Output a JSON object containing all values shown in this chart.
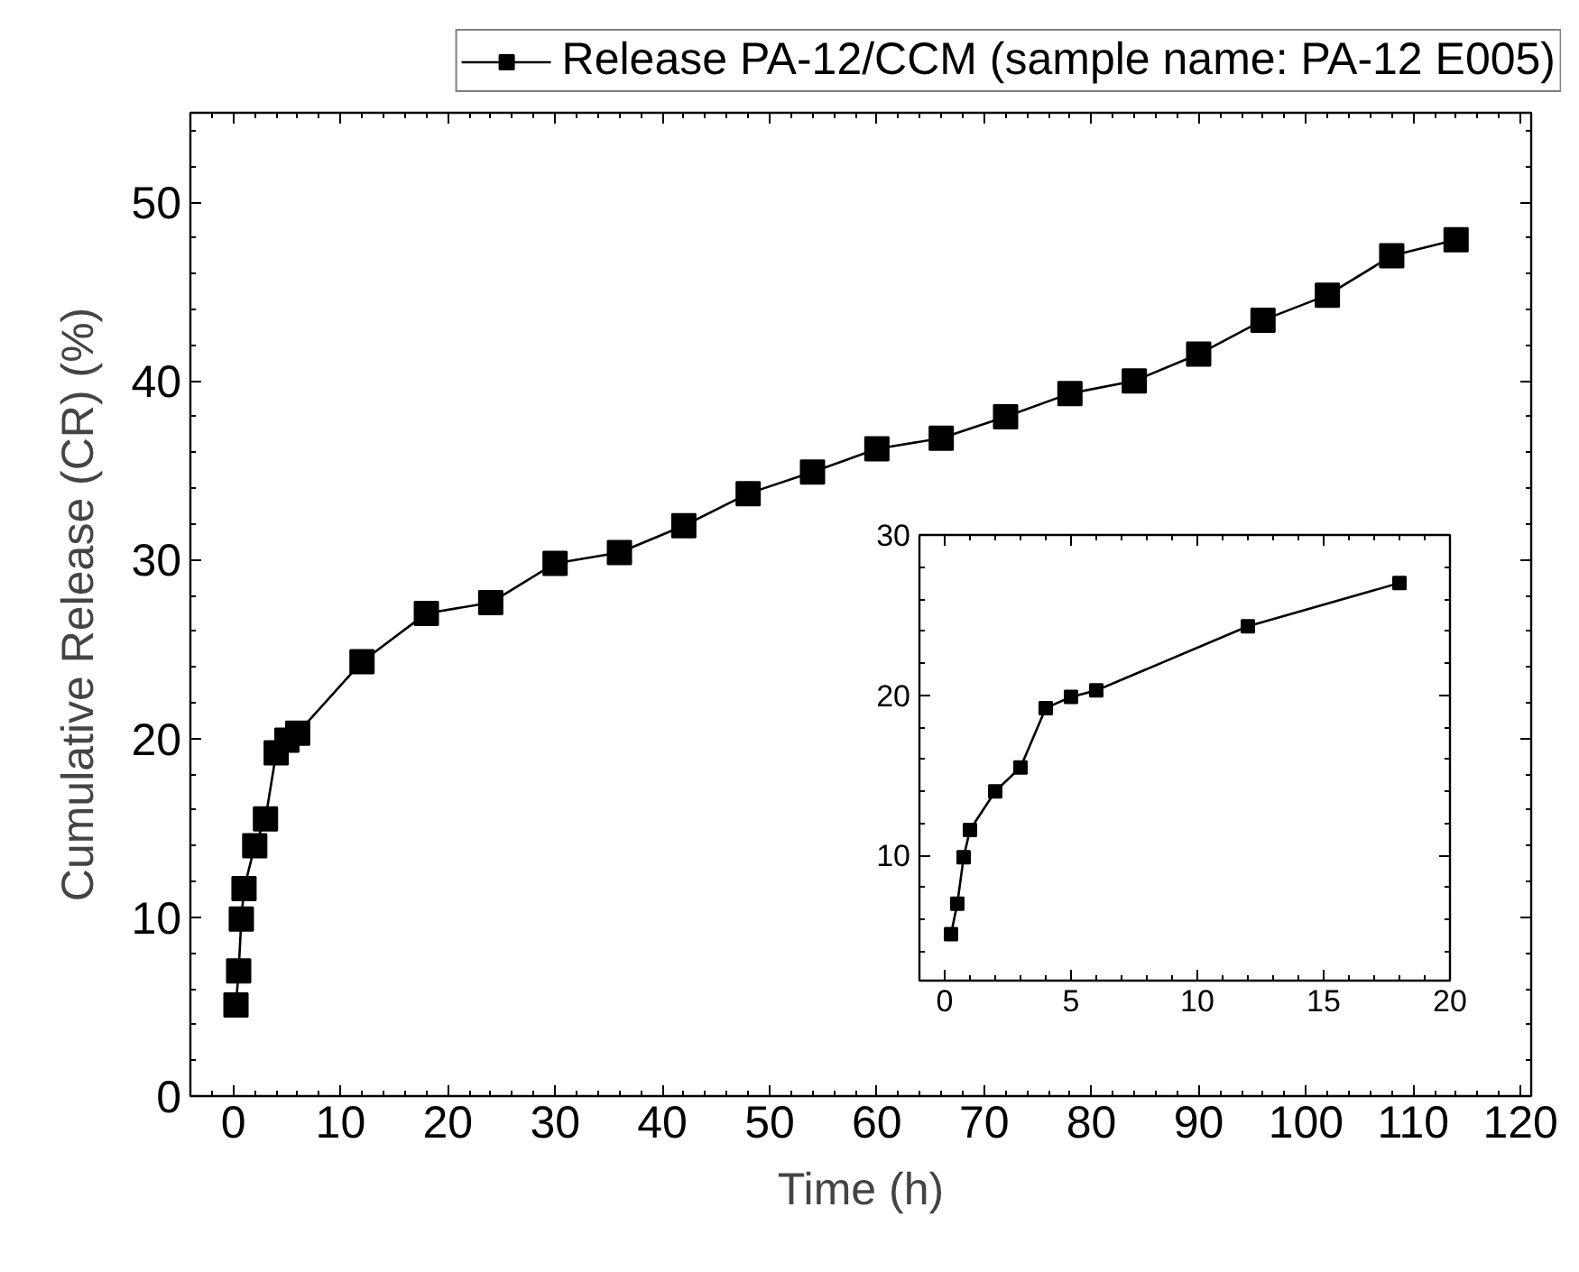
{
  "chart_data": [
    {
      "type": "line",
      "xlabel": "Time (h)",
      "ylabel": "Cumulative Release (CR) (%)",
      "marker": "square",
      "legend": "top",
      "grid": false,
      "xlim": [
        -4,
        121
      ],
      "ylim": [
        0,
        55
      ],
      "xticks": [
        0,
        10,
        20,
        30,
        40,
        50,
        60,
        70,
        80,
        90,
        100,
        110,
        120
      ],
      "yticks": [
        0,
        10,
        20,
        30,
        40,
        50
      ],
      "series": [
        {
          "name": "Release PA-12/CCM (sample name: PA-12 E005)",
          "color": "#000000",
          "x": [
            0.25,
            0.5,
            0.75,
            1,
            2,
            3,
            4,
            5,
            6,
            12,
            18,
            24,
            30,
            36,
            42,
            48,
            54,
            60,
            66,
            72,
            78,
            84,
            90,
            96,
            102,
            108,
            114
          ],
          "values": [
            5.1,
            7.0,
            9.9,
            11.6,
            14.0,
            15.5,
            19.2,
            19.9,
            20.3,
            24.3,
            27.0,
            27.6,
            29.8,
            30.4,
            31.9,
            33.7,
            34.9,
            36.2,
            36.8,
            38.0,
            39.3,
            40.0,
            41.5,
            43.4,
            44.8,
            47.0,
            47.9
          ]
        }
      ]
    },
    {
      "type": "line",
      "marker": "square",
      "grid": false,
      "xlim": [
        -1,
        20
      ],
      "ylim": [
        2.2,
        30
      ],
      "xticks": [
        0,
        5,
        10,
        15,
        20
      ],
      "yticks": [
        10,
        20,
        30
      ],
      "series": [
        {
          "color": "#000000",
          "x": [
            0.25,
            0.5,
            0.75,
            1,
            2,
            3,
            4,
            5,
            6,
            12,
            18
          ],
          "values": [
            5.1,
            7.0,
            9.9,
            11.6,
            14.0,
            15.5,
            19.2,
            19.9,
            20.3,
            24.3,
            27.0
          ]
        }
      ]
    }
  ]
}
